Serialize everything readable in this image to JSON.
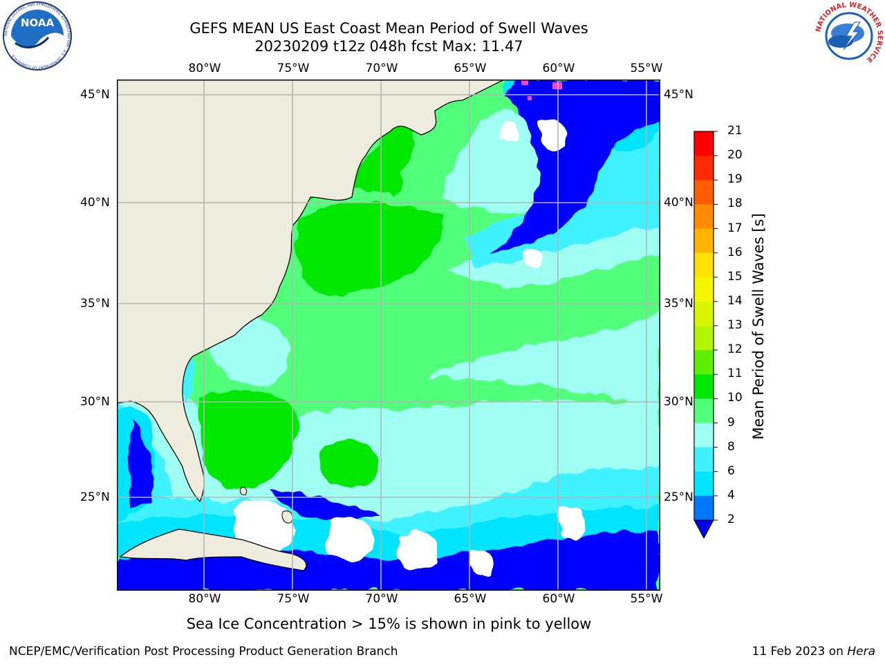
{
  "title": {
    "line1": "GEFS MEAN US East Coast Mean Period of Swell Waves",
    "line2": "20230209 t12z 048h fcst   Max: 11.47"
  },
  "subtitle": "Sea Ice Concentration > 15% is shown in pink to yellow",
  "footer": {
    "left": "NCEP/EMC/Verification Post Processing Product Generation Branch",
    "right_date": "11 Feb 2023 on ",
    "right_host": "Hera"
  },
  "axes": {
    "lon_labels": [
      "80°W",
      "75°W",
      "70°W",
      "65°W",
      "60°W",
      "55°W"
    ],
    "lat_labels": [
      "45°N",
      "40°N",
      "35°N",
      "30°N",
      "25°N"
    ]
  },
  "colorbar": {
    "label": "Mean Period of Swell Waves [s]",
    "ticks": [
      "2",
      "4",
      "6",
      "8",
      "9",
      "10",
      "11",
      "12",
      "13",
      "14",
      "15",
      "16",
      "17",
      "18",
      "19",
      "20",
      "21"
    ],
    "colors": [
      "#0000ff",
      "#0077ff",
      "#00e5ff",
      "#40f2ff",
      "#9efff2",
      "#52ff7a",
      "#00e800",
      "#5ef000",
      "#b4f500",
      "#d9f500",
      "#f5f500",
      "#ffe000",
      "#ffb400",
      "#ff8c00",
      "#ff5c00",
      "#ff2a00",
      "#ff0000"
    ],
    "extend_color": "#0000ee"
  },
  "logos": {
    "noaa": {
      "text": "NOAA",
      "ring_text": "NATIONAL OCEANIC AND ATMOSPHERIC ADMINISTRATION · U.S. DEPARTMENT OF COMMERCE"
    },
    "nws": {
      "ring_text": "NATIONAL WEATHER SERVICE"
    }
  },
  "map_colors": {
    "land": "#eeecdc",
    "grid": "#b4b4b4"
  }
}
